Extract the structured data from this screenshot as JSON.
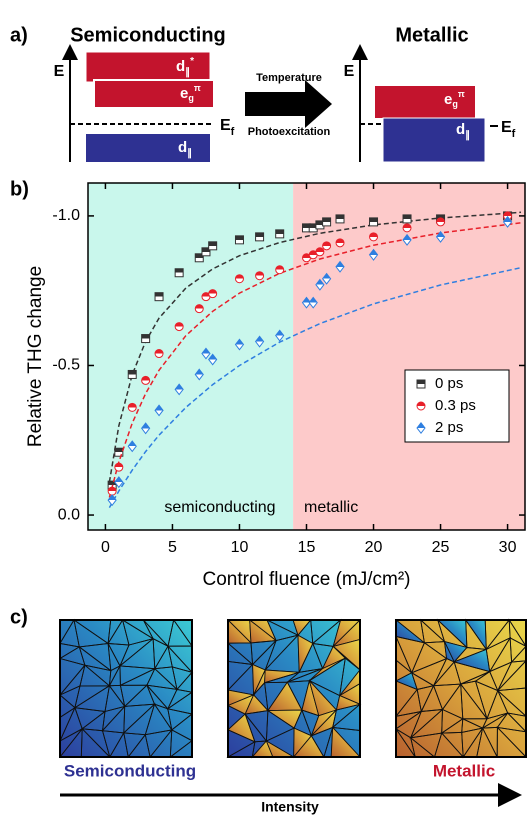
{
  "panel_a": {
    "label": "a)",
    "left_title": "Semiconducting",
    "right_title": "Metallic",
    "energy_axis": "E",
    "levels": {
      "d_star": {
        "base": "d",
        "sub": "∥",
        "sup": "*"
      },
      "eg": {
        "base": "e",
        "sub": "g",
        "sup": "π"
      },
      "d": {
        "base": "d",
        "sub": "∥"
      },
      "fermi": {
        "base": "E",
        "sub": "f"
      }
    },
    "arrow_top": "Temperature",
    "arrow_bottom": "Photoexcitation"
  },
  "chart_data": {
    "type": "scatter",
    "panel_label": "b)",
    "x_label": "Control fluence (mJ/cm²)",
    "y_label": "Relative THG change",
    "x": [
      0.5,
      1,
      2,
      3,
      4,
      5.5,
      7,
      7.5,
      8,
      10,
      11.5,
      13,
      15,
      15.5,
      16,
      16.5,
      17.5,
      20,
      22.5,
      25,
      30
    ],
    "series": [
      {
        "name": "0 ps",
        "color": "#333333",
        "marker": "square",
        "values": [
          -0.1,
          -0.21,
          -0.47,
          -0.59,
          -0.73,
          -0.81,
          -0.86,
          -0.88,
          -0.9,
          -0.92,
          -0.93,
          -0.94,
          -0.96,
          -0.96,
          -0.97,
          -0.98,
          -0.99,
          -0.98,
          -0.99,
          -0.99,
          -1.0
        ],
        "fit_values": [
          -0.11,
          -0.298,
          -0.469,
          -0.58,
          -0.658,
          -0.759,
          -0.823,
          -0.867,
          -0.911,
          -0.942,
          -0.97,
          -0.993,
          -1.012
        ]
      },
      {
        "name": "0.3 ps",
        "color": "#e8202a",
        "marker": "circle",
        "values": [
          -0.08,
          -0.16,
          -0.36,
          -0.45,
          -0.54,
          -0.63,
          -0.69,
          -0.73,
          -0.74,
          -0.79,
          -0.8,
          -0.82,
          -0.86,
          -0.87,
          -0.88,
          -0.9,
          -0.91,
          -0.93,
          -0.96,
          -0.98,
          -1.0
        ],
        "fit_values": [
          -0.059,
          -0.177,
          -0.307,
          -0.406,
          -0.484,
          -0.6,
          -0.681,
          -0.742,
          -0.808,
          -0.856,
          -0.902,
          -0.943,
          -0.977
        ]
      },
      {
        "name": "2 ps",
        "color": "#2f7fe0",
        "marker": "diamond",
        "values": [
          -0.05,
          -0.11,
          -0.23,
          -0.29,
          -0.35,
          -0.42,
          -0.47,
          -0.54,
          -0.52,
          -0.57,
          -0.58,
          -0.6,
          -0.71,
          -0.71,
          -0.77,
          -0.79,
          -0.83,
          -0.87,
          -0.92,
          -0.93,
          -0.98
        ],
        "fit_values": [
          -0.025,
          -0.08,
          -0.15,
          -0.212,
          -0.267,
          -0.36,
          -0.436,
          -0.5,
          -0.578,
          -0.64,
          -0.706,
          -0.769,
          -0.827
        ]
      }
    ],
    "fit_x": [
      0.3,
      1,
      2,
      3,
      4,
      6,
      8,
      10,
      13,
      16,
      20,
      25,
      31
    ],
    "xlim": [
      -1.3,
      31.3
    ],
    "xticks": [
      0,
      5,
      10,
      15,
      20,
      25,
      30
    ],
    "ylim": [
      0.05,
      -1.11
    ],
    "yticks": [
      {
        "value": 0,
        "label": "0.0"
      },
      -0.5,
      {
        "value": -1,
        "label": "-1.0"
      }
    ],
    "region_boundary": 14,
    "regions": [
      {
        "label": "semiconducting",
        "color": "#c9f7ec"
      },
      {
        "label": "metallic",
        "color": "#fdcaca"
      }
    ],
    "legend": "right"
  },
  "panel_c": {
    "label": "c)",
    "left_caption": "Semiconducting",
    "right_caption": "Metallic",
    "axis_label": "Intensity"
  }
}
